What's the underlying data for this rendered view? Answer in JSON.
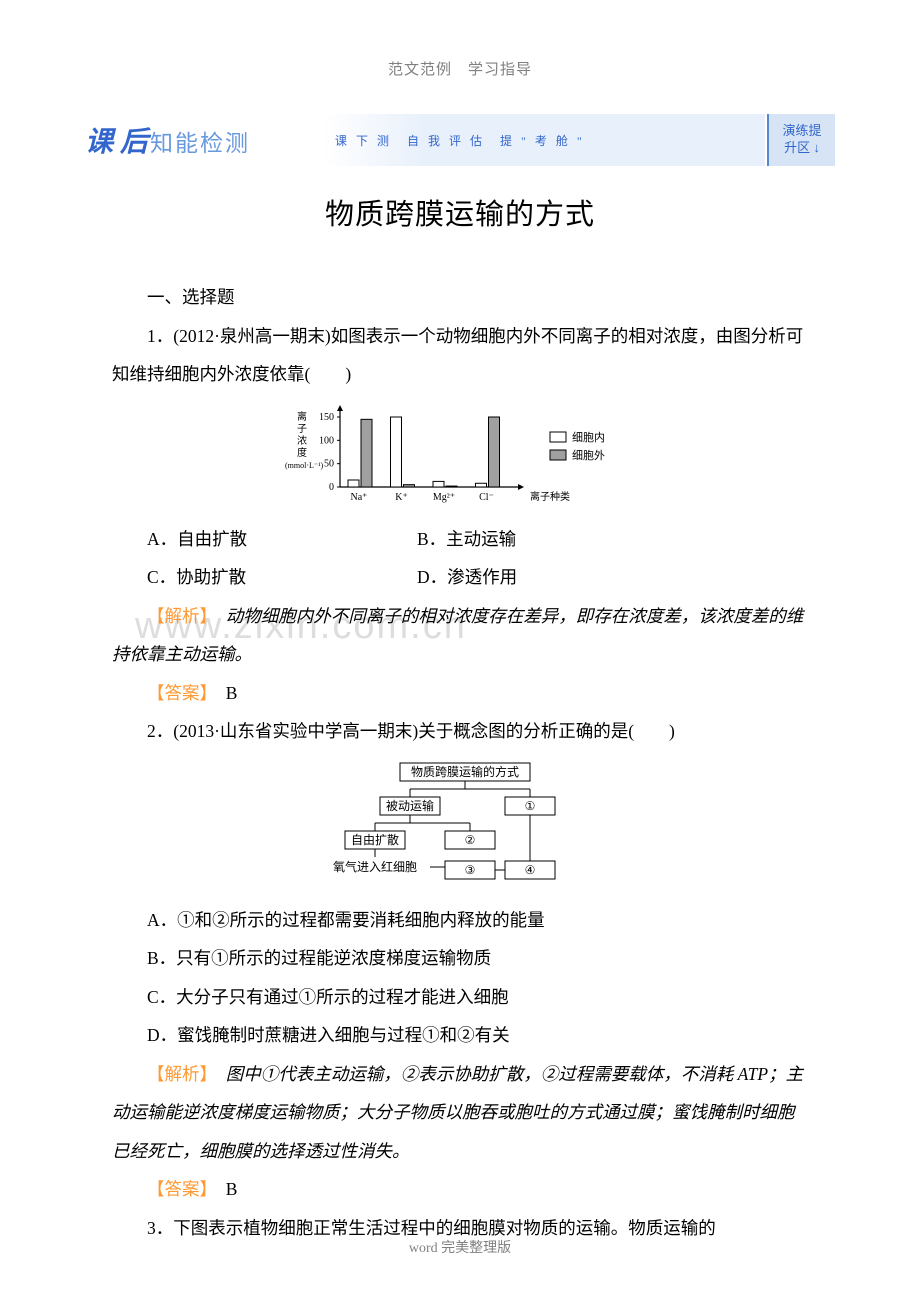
{
  "header": "范文范例　学习指导",
  "banner": {
    "title_main": "课 后",
    "title_sub": "知能检测",
    "middle": "课 下 测　自 我 评 估　提 \" 考 舱 \"",
    "right_line1": "演练提",
    "right_line2": "升区 ↓"
  },
  "main_title": "物质跨膜运输的方式",
  "section1": "一、选择题",
  "q1": {
    "stem": "1．(2012·泉州高一期末)如图表示一个动物细胞内外不同离子的相对浓度，由图分析可知维持细胞内外浓度依靠(　　)",
    "chart": {
      "type": "bar",
      "y_label": "离子浓度(mmol·L⁻¹)",
      "y_ticks": [
        0,
        50,
        100,
        150
      ],
      "x_label": "离子种类",
      "categories": [
        "Na⁺",
        "K⁺",
        "Mg²⁺",
        "Cl⁻"
      ],
      "series": [
        {
          "name": "细胞内",
          "values": [
            15,
            150,
            12,
            8
          ],
          "fill": "#ffffff",
          "stroke": "#000000"
        },
        {
          "name": "细胞外",
          "values": [
            145,
            5,
            2,
            150
          ],
          "fill": "#a0a0a0",
          "stroke": "#000000"
        }
      ],
      "axis_color": "#000000",
      "font_size": 11
    },
    "options": {
      "A": "A．自由扩散",
      "B": "B．主动运输",
      "C": "C．协助扩散",
      "D": "D．渗透作用"
    },
    "analysis_label": "【解析】",
    "analysis": "　动物细胞内外不同离子的相对浓度存在差异，即存在浓度差，该浓度差的维持依靠主动运输。",
    "answer_label": "【答案】",
    "answer": "　B"
  },
  "q2": {
    "stem": "2．(2013·山东省实验中学高一期末)关于概念图的分析正确的是(　　)",
    "diagram": {
      "type": "tree",
      "root": "物质跨膜运输的方式",
      "branches": {
        "left": {
          "label": "被动运输",
          "children": [
            "自由扩散",
            "②"
          ]
        },
        "right": {
          "label": "①",
          "children": []
        }
      },
      "bottom": {
        "label": "氧气进入红细胞",
        "to": [
          "③",
          "④"
        ]
      },
      "box_border": "#000000",
      "font_size": 12
    },
    "options": {
      "A": "A．①和②所示的过程都需要消耗细胞内释放的能量",
      "B": "B．只有①所示的过程能逆浓度梯度运输物质",
      "C": "C．大分子只有通过①所示的过程才能进入细胞",
      "D": "D．蜜饯腌制时蔗糖进入细胞与过程①和②有关"
    },
    "analysis_label": "【解析】",
    "analysis": "　图中①代表主动运输，②表示协助扩散，②过程需要载体，不消耗 ATP；主动运输能逆浓度梯度运输物质；大分子物质以胞吞或胞吐的方式通过膜；蜜饯腌制时细胞已经死亡，细胞膜的选择透过性消失。",
    "answer_label": "【答案】",
    "answer": "　B"
  },
  "q3_partial": "3．下图表示植物细胞正常生活过程中的细胞膜对物质的运输。物质运输的",
  "watermark": "www.zixin.com.cn",
  "footer": "word 完美整理版"
}
